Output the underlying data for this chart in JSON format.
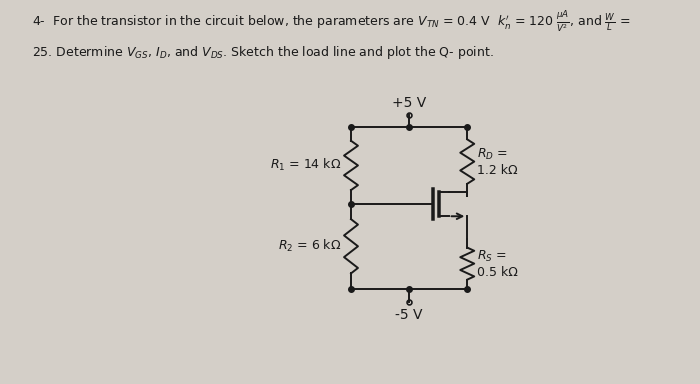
{
  "bg_color": "#d4cfc8",
  "line_color": "#1a1a1a",
  "VDD_label": "+5 V",
  "VSS_label": "-5 V",
  "R1_label": "$R_1$ = 14 kΩ",
  "R2_label": "$R_2$ = 6 kΩ",
  "RD_label": "$R_D$ =\n1.2 kΩ",
  "RS_label": "$R_S$ =\n0.5 kΩ",
  "title_line1": "4-  For the transistor in the circuit below, the parameters are $V_{TN}$ = 0.4 V  $k_n^{\\prime}$ = 120 $\\dfrac{\\mu A}{V^2}$, and $\\dfrac{W}{L}$ =",
  "title_line2": "25. Determine $V_{GS}$, $I_D$, and $V_{DS}$. Sketch the load line and plot the Q- point.",
  "font_size_title": 9,
  "font_size_label": 9
}
